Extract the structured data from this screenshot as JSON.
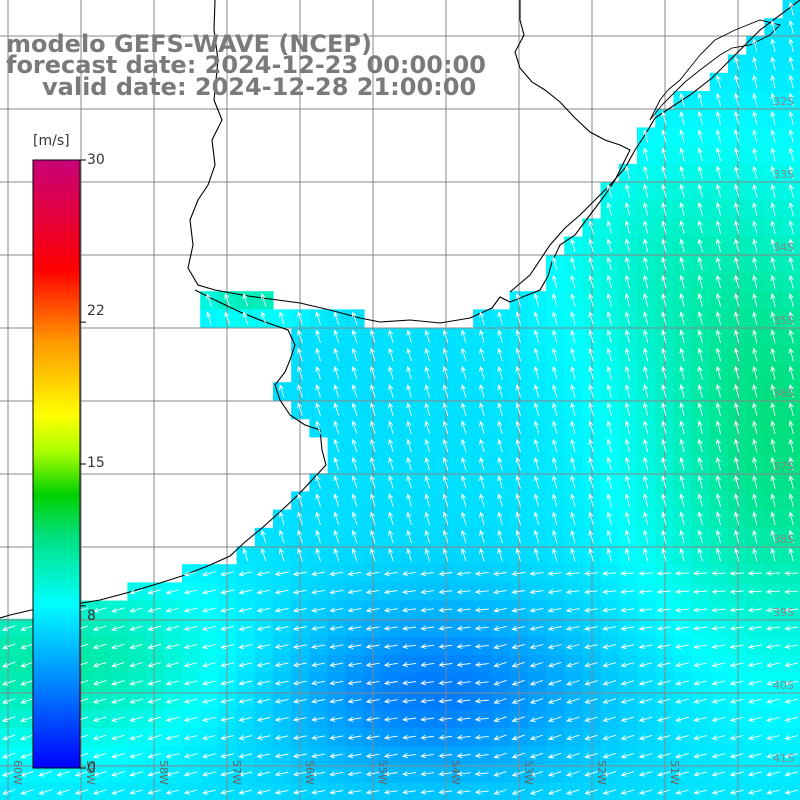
{
  "title": {
    "line1": "modelo GEFS-WAVE (NCEP)",
    "line2": "forecast date: 2024-12-23 00:00:00",
    "line3": "valid date: 2024-12-28 21:00:00"
  },
  "colorbar": {
    "unit": "[m/s]",
    "ticks": [
      "30",
      "22",
      "15",
      "8",
      "0"
    ],
    "tick_values": [
      30,
      22,
      15,
      8,
      0
    ],
    "min": 0,
    "max": 30,
    "colors": [
      "#0000ff",
      "#00c8ff",
      "#00ffe0",
      "#00dd00",
      "#ffff00",
      "#ff8800",
      "#ff0000",
      "#cc0088"
    ]
  },
  "axes": {
    "lon_labels": [
      "60W",
      "59W",
      "58W",
      "57W",
      "56W",
      "55W",
      "54W",
      "53W",
      "52W",
      "51W"
    ],
    "lat_labels": [
      "32S",
      "33S",
      "34S",
      "35S",
      "36S",
      "37S",
      "38S",
      "39S",
      "40S",
      "41S"
    ]
  },
  "chart_data": {
    "type": "heatmap",
    "variable": "wind speed with direction arrows",
    "lon_range": [
      -61,
      -50.5
    ],
    "lat_range": [
      -41.5,
      -31.2
    ],
    "value_range": [
      0,
      30
    ],
    "typical_values": {
      "ocean_south_open": 9,
      "ocean_central": 7,
      "ocean_east": 11,
      "rio_de_la_plata": 7,
      "southwest_coastal": 11
    }
  }
}
